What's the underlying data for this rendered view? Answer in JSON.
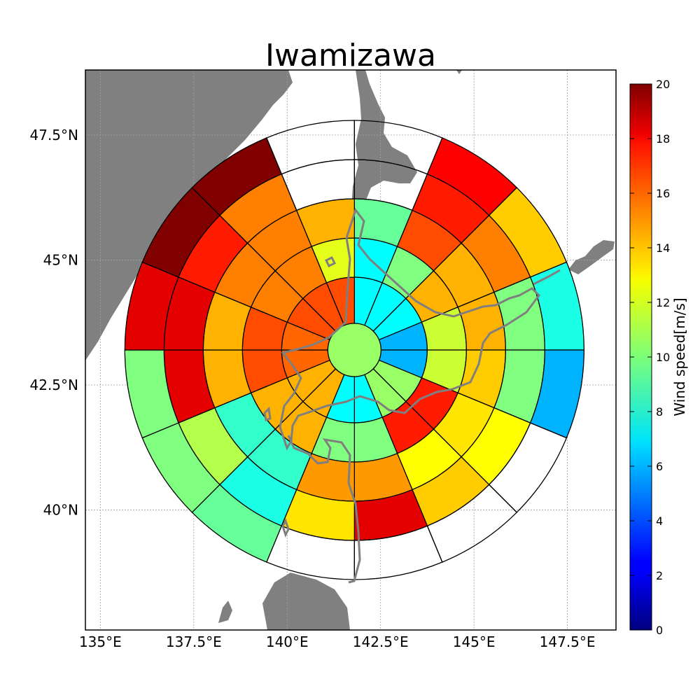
{
  "chart_data": {
    "type": "heatmap",
    "subtype": "polar-wind-rose-on-map",
    "title": "Iwamizawa",
    "xlabel": "",
    "ylabel": "",
    "xlim": [
      134.6,
      148.8
    ],
    "ylim": [
      37.6,
      48.8
    ],
    "xticks": [
      135,
      137.5,
      140,
      142.5,
      145,
      147.5
    ],
    "xtick_labels": [
      "135°E",
      "137.5°E",
      "140°E",
      "142.5°E",
      "145°E",
      "147.5°E"
    ],
    "yticks": [
      40,
      42.5,
      45,
      47.5
    ],
    "ytick_labels": [
      "40°N",
      "42.5°N",
      "45°N",
      "47.5°N"
    ],
    "grid": true,
    "center": {
      "lon": 141.8,
      "lat": 43.2
    },
    "sectors_per_ring": 16,
    "sector_order": "clockwise from north, ring index 0 = innermost annulus",
    "center_value": 10.5,
    "rings": [
      [
        7.5,
        7.5,
        7.5,
        6,
        6,
        10.5,
        10.5,
        7.5,
        7.5,
        14,
        14,
        15.5,
        15.5,
        16,
        16,
        16
      ],
      [
        7.5,
        10,
        14,
        11.5,
        11.5,
        17,
        17,
        10,
        10,
        14,
        14,
        16,
        16,
        15,
        15,
        12
      ],
      [
        9.5,
        16,
        14,
        14,
        13.5,
        13,
        12.5,
        14.5,
        14.5,
        8.5,
        8.5,
        14,
        14,
        15,
        15,
        14
      ],
      [
        null,
        17,
        15,
        10,
        10,
        12.5,
        13.5,
        18,
        13,
        8,
        11,
        18,
        18,
        17,
        15,
        null
      ],
      [
        null,
        17.5,
        13.5,
        8,
        6,
        null,
        null,
        null,
        null,
        9.5,
        10,
        10,
        18,
        20,
        20,
        null
      ]
    ],
    "colorbar": {
      "label": "Wind speed[m/s]",
      "min": 0,
      "max": 20,
      "ticks": [
        0,
        2,
        4,
        6,
        8,
        10,
        12,
        14,
        16,
        18,
        20
      ],
      "colormap": "jet"
    },
    "colors": {
      "land": "#808080",
      "ocean": "#ffffff",
      "coast_on_rose": "#7f7f7f",
      "grid": "#a0a0a0"
    }
  }
}
